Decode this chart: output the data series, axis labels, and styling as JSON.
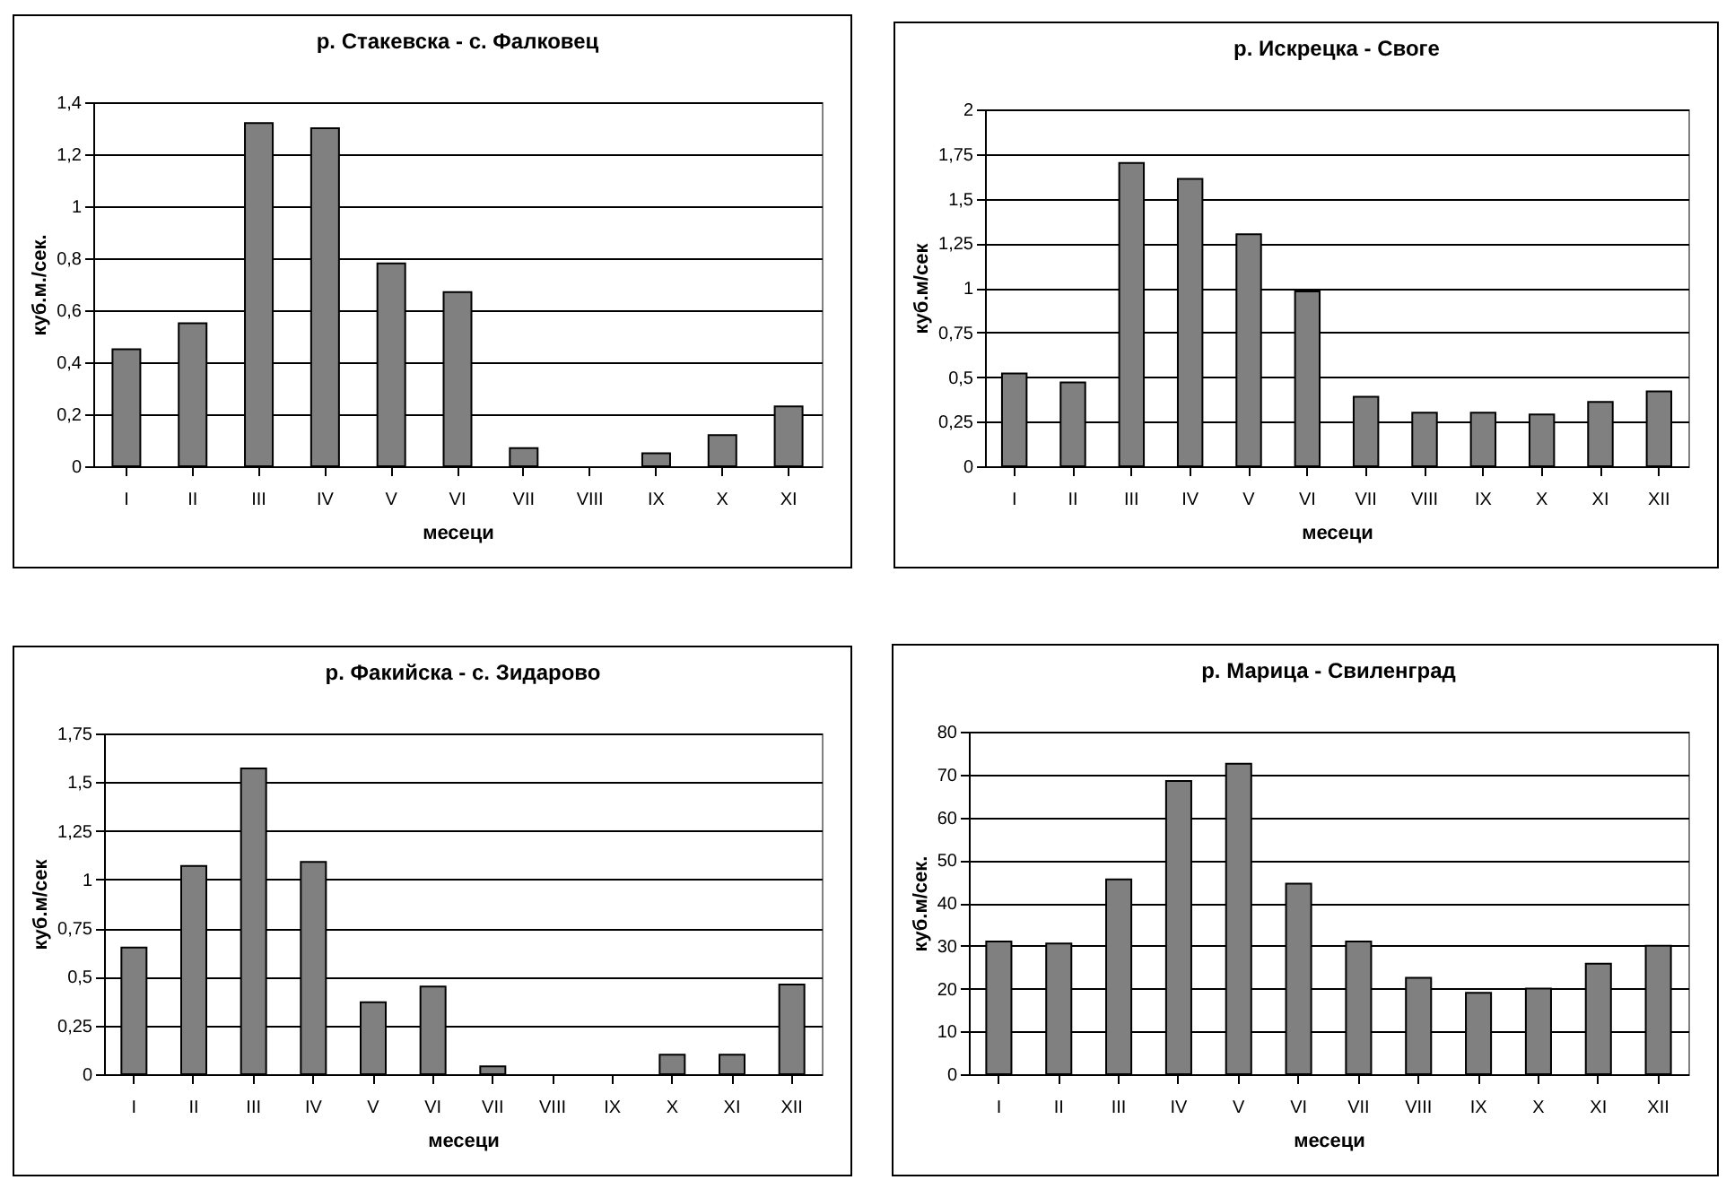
{
  "chart_data": [
    {
      "type": "bar",
      "title": "р. Стакевска - с. Фалковец",
      "xlabel": "месеци",
      "ylabel": "куб.м./сек.",
      "categories": [
        "I",
        "II",
        "III",
        "IV",
        "V",
        "VI",
        "VII",
        "VIII",
        "IX",
        "X",
        "XI"
      ],
      "values": [
        0.45,
        0.55,
        1.32,
        1.3,
        0.78,
        0.67,
        0.07,
        0,
        0.05,
        0.12,
        0.23
      ],
      "color": "#808080",
      "ylim": [
        0,
        1.4
      ],
      "yticks": [
        0,
        {
          "value": 0.2,
          "label": "0,2"
        },
        {
          "value": 0.4,
          "label": "0,4"
        },
        {
          "value": 0.6,
          "label": "0,6"
        },
        {
          "value": 0.8,
          "label": "0,8"
        },
        1,
        {
          "value": 1.2,
          "label": "1,2"
        },
        {
          "value": 1.4,
          "label": "1,4"
        }
      ],
      "grid": "y"
    },
    {
      "type": "bar",
      "title": "р. Искрецка - Своге",
      "xlabel": "месеци",
      "ylabel": "куб.м/сек",
      "categories": [
        "I",
        "II",
        "III",
        "IV",
        "V",
        "VI",
        "VII",
        "VIII",
        "IX",
        "X",
        "XI",
        "XII"
      ],
      "values": [
        0.52,
        0.47,
        1.7,
        1.61,
        1.3,
        0.98,
        0.39,
        0.3,
        0.3,
        0.29,
        0.36,
        0.42
      ],
      "color": "#808080",
      "ylim": [
        0,
        2
      ],
      "yticks": [
        0,
        {
          "value": 0.25,
          "label": "0,25"
        },
        {
          "value": 0.5,
          "label": "0,5"
        },
        {
          "value": 0.75,
          "label": "0,75"
        },
        1,
        {
          "value": 1.25,
          "label": "1,25"
        },
        {
          "value": 1.5,
          "label": "1,5"
        },
        {
          "value": 1.75,
          "label": "1,75"
        },
        2
      ],
      "grid": "y"
    },
    {
      "type": "bar",
      "title": "р. Факийска - с. Зидарово",
      "xlabel": "месеци",
      "ylabel": "куб.м/сек",
      "categories": [
        "I",
        "II",
        "III",
        "IV",
        "V",
        "VI",
        "VII",
        "VIII",
        "IX",
        "X",
        "XI",
        "XII"
      ],
      "values": [
        0.65,
        1.07,
        1.57,
        1.09,
        0.37,
        0.45,
        0.04,
        0,
        0,
        0.1,
        0.1,
        0.46
      ],
      "color": "#808080",
      "ylim": [
        0,
        1.75
      ],
      "yticks": [
        0,
        {
          "value": 0.25,
          "label": "0,25"
        },
        {
          "value": 0.5,
          "label": "0,5"
        },
        {
          "value": 0.75,
          "label": "0,75"
        },
        1,
        {
          "value": 1.25,
          "label": "1,25"
        },
        {
          "value": 1.5,
          "label": "1,5"
        },
        {
          "value": 1.75,
          "label": "1,75"
        }
      ],
      "grid": "y"
    },
    {
      "type": "bar",
      "title": "р. Марица - Свиленград",
      "xlabel": "месеци",
      "ylabel": "куб.м/сек.",
      "categories": [
        "I",
        "II",
        "III",
        "IV",
        "V",
        "VI",
        "VII",
        "VIII",
        "IX",
        "X",
        "XI",
        "XII"
      ],
      "values": [
        31,
        30.5,
        45.5,
        68.5,
        72.5,
        44.5,
        31,
        22.5,
        19,
        20,
        25.8,
        30
      ],
      "color": "#808080",
      "ylim": [
        0,
        80
      ],
      "yticks": [
        0,
        10,
        20,
        30,
        40,
        50,
        60,
        70,
        80
      ],
      "grid": "y"
    }
  ]
}
